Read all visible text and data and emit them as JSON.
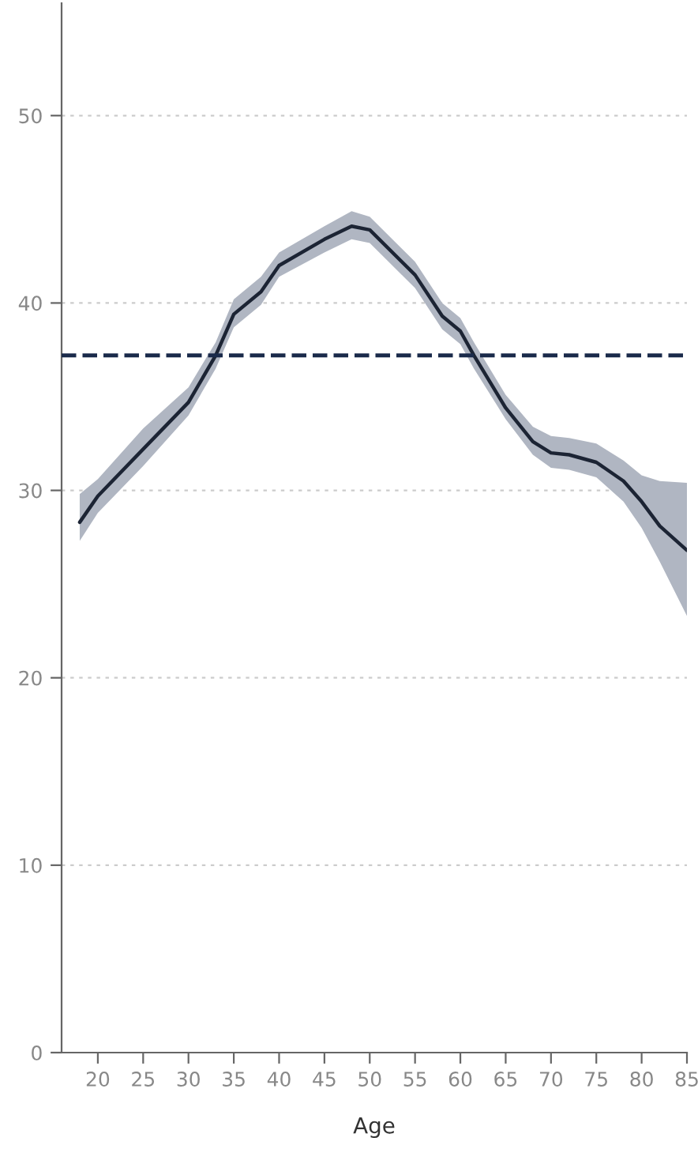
{
  "chart_data": {
    "type": "line",
    "xlabel": "Age",
    "series": [
      {
        "color": "#1c2434",
        "x": [
          18,
          20,
          25,
          30,
          33,
          35,
          38,
          40,
          45,
          48,
          50,
          55,
          58,
          60,
          61.5,
          65,
          68,
          70,
          72,
          75,
          78,
          80,
          82,
          85
        ],
        "values": [
          28.3,
          29.7,
          32.2,
          34.7,
          37.2,
          39.4,
          40.6,
          42.0,
          43.4,
          44.1,
          43.9,
          41.5,
          39.3,
          38.5,
          37.2,
          34.4,
          32.6,
          32.0,
          31.9,
          31.5,
          30.5,
          29.4,
          28.1,
          26.8
        ],
        "upper": [
          29.8,
          30.6,
          33.3,
          35.5,
          37.9,
          40.2,
          41.4,
          42.7,
          44.1,
          44.9,
          44.6,
          42.2,
          40.0,
          39.2,
          37.9,
          35.1,
          33.4,
          32.9,
          32.8,
          32.5,
          31.6,
          30.8,
          30.5,
          30.4
        ],
        "lower": [
          27.3,
          28.8,
          31.3,
          34.0,
          36.5,
          38.7,
          39.9,
          41.4,
          42.7,
          43.4,
          43.2,
          40.8,
          38.6,
          37.8,
          36.5,
          33.8,
          31.9,
          31.2,
          31.1,
          30.7,
          29.4,
          28.0,
          26.2,
          23.3
        ]
      }
    ],
    "ref_lines": [
      {
        "axis": "y",
        "value": 37.2,
        "color": "#1a2a4a",
        "line_style": "dashed"
      }
    ],
    "xlim": [
      16,
      85
    ],
    "xticks": [
      20,
      25,
      30,
      35,
      40,
      45,
      50,
      55,
      60,
      65,
      70,
      75,
      80,
      85
    ],
    "ylim": [
      0,
      56
    ],
    "yticks": [
      0,
      10,
      20,
      30,
      40,
      50
    ],
    "grid": "y",
    "legend": false,
    "marker": "none",
    "line_style": "solid"
  }
}
